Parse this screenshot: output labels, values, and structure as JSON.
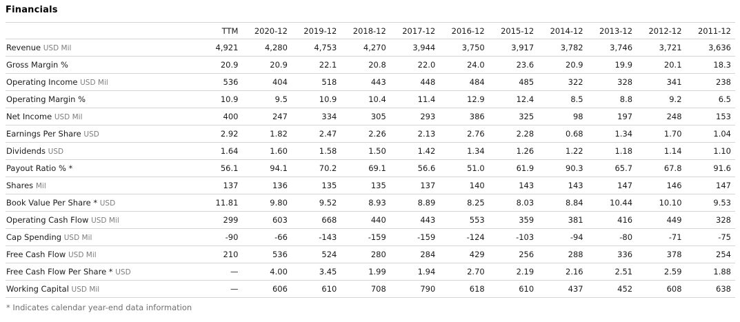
{
  "title": "Financials",
  "footnote": "* Indicates calendar year-end data information",
  "colors": {
    "text": "#1a1a1a",
    "muted_unit_text": "#7d7d7d",
    "row_border": "#d4d4d4",
    "background": "#ffffff"
  },
  "table": {
    "columns": [
      "TTM",
      "2020-12",
      "2019-12",
      "2018-12",
      "2017-12",
      "2016-12",
      "2015-12",
      "2014-12",
      "2013-12",
      "2012-12",
      "2011-12"
    ],
    "rows": [
      {
        "label": "Revenue",
        "unit": "USD Mil",
        "values": [
          "4,921",
          "4,280",
          "4,753",
          "4,270",
          "3,944",
          "3,750",
          "3,917",
          "3,782",
          "3,746",
          "3,721",
          "3,636"
        ]
      },
      {
        "label": "Gross Margin %",
        "unit": "",
        "values": [
          "20.9",
          "20.9",
          "22.1",
          "20.8",
          "22.0",
          "24.0",
          "23.6",
          "20.9",
          "19.9",
          "20.1",
          "18.3"
        ]
      },
      {
        "label": "Operating Income",
        "unit": "USD Mil",
        "values": [
          "536",
          "404",
          "518",
          "443",
          "448",
          "484",
          "485",
          "322",
          "328",
          "341",
          "238"
        ]
      },
      {
        "label": "Operating Margin %",
        "unit": "",
        "values": [
          "10.9",
          "9.5",
          "10.9",
          "10.4",
          "11.4",
          "12.9",
          "12.4",
          "8.5",
          "8.8",
          "9.2",
          "6.5"
        ]
      },
      {
        "label": "Net Income",
        "unit": "USD Mil",
        "values": [
          "400",
          "247",
          "334",
          "305",
          "293",
          "386",
          "325",
          "98",
          "197",
          "248",
          "153"
        ]
      },
      {
        "label": "Earnings Per Share",
        "unit": "USD",
        "values": [
          "2.92",
          "1.82",
          "2.47",
          "2.26",
          "2.13",
          "2.76",
          "2.28",
          "0.68",
          "1.34",
          "1.70",
          "1.04"
        ]
      },
      {
        "label": "Dividends",
        "unit": "USD",
        "values": [
          "1.64",
          "1.60",
          "1.58",
          "1.50",
          "1.42",
          "1.34",
          "1.26",
          "1.22",
          "1.18",
          "1.14",
          "1.10"
        ]
      },
      {
        "label": "Payout Ratio % *",
        "unit": "",
        "values": [
          "56.1",
          "94.1",
          "70.2",
          "69.1",
          "56.6",
          "51.0",
          "61.9",
          "90.3",
          "65.7",
          "67.8",
          "91.6"
        ]
      },
      {
        "label": "Shares",
        "unit": "Mil",
        "values": [
          "137",
          "136",
          "135",
          "135",
          "137",
          "140",
          "143",
          "143",
          "147",
          "146",
          "147"
        ]
      },
      {
        "label": "Book Value Per Share *",
        "unit": "USD",
        "values": [
          "11.81",
          "9.80",
          "9.52",
          "8.93",
          "8.89",
          "8.25",
          "8.03",
          "8.84",
          "10.44",
          "10.10",
          "9.53"
        ]
      },
      {
        "label": "Operating Cash Flow",
        "unit": "USD Mil",
        "values": [
          "299",
          "603",
          "668",
          "440",
          "443",
          "553",
          "359",
          "381",
          "416",
          "449",
          "328"
        ]
      },
      {
        "label": "Cap Spending",
        "unit": "USD Mil",
        "values": [
          "-90",
          "-66",
          "-143",
          "-159",
          "-159",
          "-124",
          "-103",
          "-94",
          "-80",
          "-71",
          "-75"
        ]
      },
      {
        "label": "Free Cash Flow",
        "unit": "USD Mil",
        "values": [
          "210",
          "536",
          "524",
          "280",
          "284",
          "429",
          "256",
          "288",
          "336",
          "378",
          "254"
        ]
      },
      {
        "label": "Free Cash Flow Per Share *",
        "unit": "USD",
        "values": [
          "—",
          "4.00",
          "3.45",
          "1.99",
          "1.94",
          "2.70",
          "2.19",
          "2.16",
          "2.51",
          "2.59",
          "1.88"
        ]
      },
      {
        "label": "Working Capital",
        "unit": "USD Mil",
        "values": [
          "—",
          "606",
          "610",
          "708",
          "790",
          "618",
          "610",
          "437",
          "452",
          "608",
          "638"
        ]
      }
    ]
  }
}
